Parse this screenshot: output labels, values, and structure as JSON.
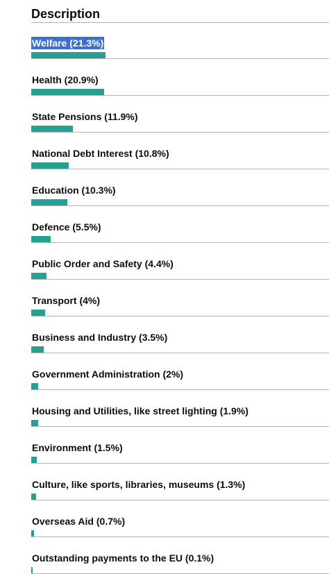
{
  "header": {
    "title": "Description"
  },
  "colors": {
    "bar": "#27a093",
    "selection": "#3d6fce",
    "divider": "#b1b4b6"
  },
  "chart_data": {
    "type": "bar",
    "orientation": "horizontal",
    "title": "",
    "xlabel": "",
    "ylabel": "",
    "xlim": [
      0,
      21.3
    ],
    "grid": false,
    "selected_index": 0,
    "items": [
      {
        "label": "Welfare (21.3%)",
        "value": 21.3
      },
      {
        "label": "Health (20.9%)",
        "value": 20.9
      },
      {
        "label": "State Pensions (11.9%)",
        "value": 11.9
      },
      {
        "label": "National Debt Interest (10.8%)",
        "value": 10.8
      },
      {
        "label": "Education (10.3%)",
        "value": 10.3
      },
      {
        "label": "Defence (5.5%)",
        "value": 5.5
      },
      {
        "label": "Public Order and Safety (4.4%)",
        "value": 4.4
      },
      {
        "label": "Transport (4%)",
        "value": 4
      },
      {
        "label": "Business and Industry (3.5%)",
        "value": 3.5
      },
      {
        "label": "Government Administration (2%)",
        "value": 2
      },
      {
        "label": "Housing and Utilities, like street lighting (1.9%)",
        "value": 1.9
      },
      {
        "label": "Environment (1.5%)",
        "value": 1.5
      },
      {
        "label": "Culture, like sports, libraries, museums (1.3%)",
        "value": 1.3
      },
      {
        "label": "Overseas Aid (0.7%)",
        "value": 0.7
      },
      {
        "label": "Outstanding payments to the EU (0.1%)",
        "value": 0.1
      }
    ]
  }
}
